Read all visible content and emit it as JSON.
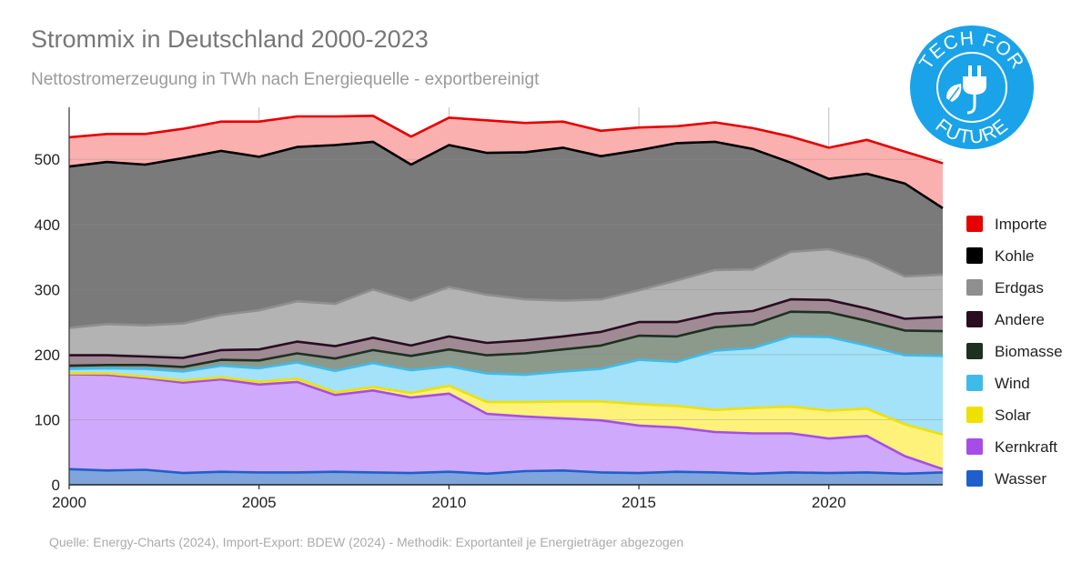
{
  "title": "Strommix in Deutschland 2000-2023",
  "subtitle": "Nettostromerzeugung in TWh nach Energiequelle - exportbereinigt",
  "source": "Quelle: Energy-Charts (2024),  Import-Export: BDEW (2024) - Methodik: Exportanteil je Energieträger abgezogen",
  "logo": {
    "top_text": "TECH FOR",
    "bottom_text": "FUTURE",
    "icon": "plug-leaf-icon",
    "color": "#1aa3e8"
  },
  "chart_data": {
    "type": "area",
    "stacked": true,
    "x": [
      2000,
      2001,
      2002,
      2003,
      2004,
      2005,
      2006,
      2007,
      2008,
      2009,
      2010,
      2011,
      2012,
      2013,
      2014,
      2015,
      2016,
      2017,
      2018,
      2019,
      2020,
      2021,
      2022,
      2023
    ],
    "xlim": [
      2000,
      2023
    ],
    "ylim": [
      0,
      580
    ],
    "x_ticks": [
      2000,
      2005,
      2010,
      2015,
      2020
    ],
    "y_ticks": [
      0,
      100,
      200,
      300,
      400,
      500
    ],
    "legend_position": "right",
    "series": [
      {
        "name": "Wasser",
        "fill": "#7fa5dc",
        "line": "#1f5fcc",
        "values": [
          24,
          22,
          23,
          18,
          20,
          19,
          19,
          20,
          19,
          18,
          20,
          17,
          21,
          22,
          19,
          18,
          20,
          19,
          17,
          19,
          18,
          19,
          17,
          19
        ]
      },
      {
        "name": "Kernkraft",
        "fill": "#cfa9fb",
        "line": "#a64de8",
        "values": [
          146,
          147,
          141,
          139,
          142,
          135,
          139,
          118,
          126,
          116,
          120,
          92,
          84,
          80,
          80,
          73,
          68,
          62,
          62,
          60,
          53,
          56,
          27,
          5
        ]
      },
      {
        "name": "Solar",
        "fill": "#fff27a",
        "line": "#f0e000",
        "values": [
          1,
          2,
          2,
          3,
          3,
          4,
          5,
          4,
          5,
          7,
          12,
          18,
          22,
          26,
          29,
          33,
          33,
          34,
          39,
          41,
          43,
          42,
          49,
          53
        ]
      },
      {
        "name": "Wind",
        "fill": "#a3e2f8",
        "line": "#3fbbea",
        "values": [
          7,
          8,
          12,
          14,
          18,
          21,
          25,
          33,
          37,
          35,
          30,
          44,
          42,
          46,
          50,
          68,
          68,
          91,
          92,
          108,
          113,
          97,
          106,
          121
        ]
      },
      {
        "name": "Biomasse",
        "fill": "#8c9a8c",
        "line": "#1d3021",
        "values": [
          5,
          5,
          6,
          7,
          9,
          12,
          14,
          19,
          20,
          22,
          26,
          28,
          33,
          34,
          36,
          37,
          39,
          36,
          36,
          38,
          38,
          38,
          38,
          38
        ]
      },
      {
        "name": "Andere",
        "fill": "#a08b95",
        "line": "#2a0d20",
        "values": [
          16,
          15,
          13,
          14,
          15,
          17,
          18,
          19,
          19,
          16,
          20,
          19,
          20,
          20,
          21,
          21,
          22,
          21,
          21,
          19,
          19,
          19,
          18,
          22
        ]
      },
      {
        "name": "Erdgas",
        "fill": "#b3b3b3",
        "line": "#8f8f8f",
        "values": [
          42,
          48,
          48,
          53,
          54,
          60,
          62,
          65,
          74,
          69,
          76,
          74,
          63,
          55,
          50,
          49,
          64,
          67,
          64,
          73,
          78,
          76,
          65,
          65
        ]
      },
      {
        "name": "Kohle",
        "fill": "#7a7a7a",
        "line": "#000000",
        "values": [
          248,
          249,
          247,
          254,
          252,
          236,
          237,
          244,
          227,
          209,
          218,
          218,
          226,
          235,
          220,
          215,
          211,
          197,
          185,
          137,
          108,
          131,
          143,
          102
        ]
      },
      {
        "name": "Importe",
        "fill": "#fbb0b0",
        "line": "#e60000",
        "values": [
          45,
          43,
          47,
          45,
          45,
          54,
          47,
          44,
          40,
          43,
          42,
          50,
          45,
          40,
          39,
          35,
          26,
          30,
          32,
          40,
          48,
          52,
          49,
          69
        ]
      }
    ]
  }
}
